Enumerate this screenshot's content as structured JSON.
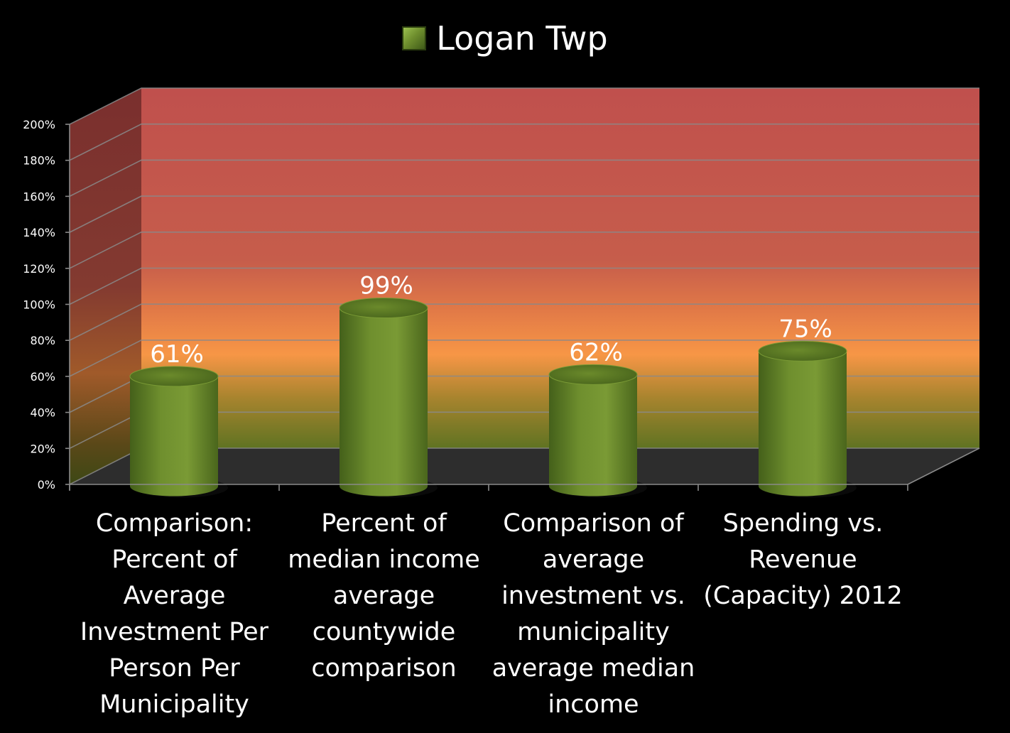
{
  "chart_data": {
    "type": "bar",
    "title": "",
    "xlabel": "",
    "ylabel": "",
    "ylim": [
      0,
      200
    ],
    "yticks": [
      "0%",
      "20%",
      "40%",
      "60%",
      "80%",
      "100%",
      "120%",
      "140%",
      "160%",
      "180%",
      "200%"
    ],
    "categories": [
      "Comparison: Percent of Average Investment Per Person Per Municipality",
      "Percent of median income average countywide comparison",
      "Comparison of average investment vs. municipality average median income",
      "Spending vs. Revenue (Capacity) 2012"
    ],
    "category_lines": [
      [
        "Comparison:",
        "Percent of",
        "Average",
        "Investment Per",
        "Person Per",
        "Municipality"
      ],
      [
        "Percent of",
        "median income",
        "average",
        "countywide",
        "comparison"
      ],
      [
        "Comparison of",
        "average",
        "investment vs.",
        "municipality",
        "average median",
        "income"
      ],
      [
        "Spending vs.",
        "Revenue",
        "(Capacity) 2012"
      ]
    ],
    "series": [
      {
        "name": "Logan Twp",
        "values": [
          61,
          99,
          62,
          75
        ],
        "labels": [
          "61%",
          "99%",
          "62%",
          "75%"
        ],
        "color": "#6f8f2e"
      }
    ],
    "legend": {
      "position": "top-center",
      "label": "Logan Twp"
    },
    "grid": true,
    "background_gradient": [
      "#c0504d",
      "#f79646",
      "#76923c"
    ]
  }
}
